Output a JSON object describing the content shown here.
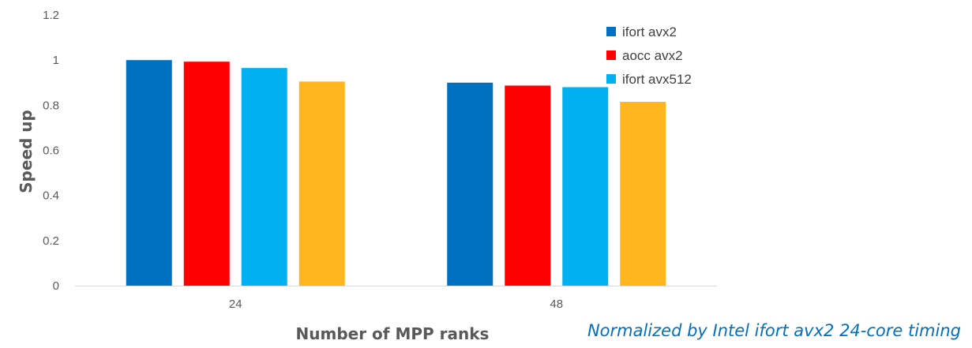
{
  "chart_data": {
    "type": "bar",
    "categories": [
      "24",
      "48"
    ],
    "series": [
      {
        "name": "ifort avx2",
        "color": "#0070c0",
        "values": [
          1.0,
          0.9
        ]
      },
      {
        "name": "aocc avx2",
        "color": "#ff0000",
        "values": [
          0.993,
          0.887
        ]
      },
      {
        "name": "ifort avx512",
        "color": "#00b0f0",
        "values": [
          0.965,
          0.88
        ]
      },
      {
        "name": "",
        "color": "#ffb61e",
        "values": [
          0.905,
          0.815
        ]
      }
    ],
    "xlabel": "Number of MPP ranks",
    "ylabel": "Speed up",
    "ylim": [
      0,
      1.2
    ],
    "yticks": [
      "0",
      "0.2",
      "0.4",
      "0.6",
      "0.8",
      "1",
      "1.2"
    ],
    "grid": false,
    "legend_position": "top-right"
  },
  "note": "Normalized by Intel ifort avx2 24-core timing"
}
